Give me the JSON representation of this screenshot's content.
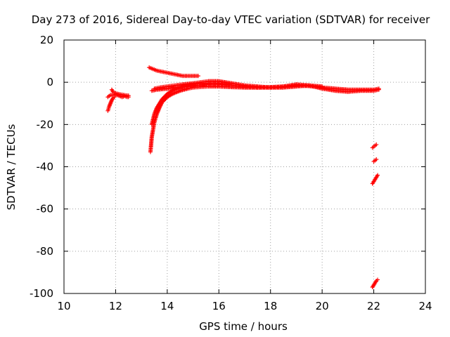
{
  "chart_data": {
    "type": "scatter",
    "title": "Day 273 of 2016, Sidereal Day-to-day VTEC variation (SDTVAR) for receiver",
    "xlabel": "GPS time / hours",
    "ylabel": "SDTVAR / TECUs",
    "xlim": [
      10,
      24
    ],
    "ylim": [
      -100,
      20
    ],
    "xticks": [
      "10",
      "12",
      "14",
      "16",
      "18",
      "20",
      "22",
      "24"
    ],
    "yticks": [
      "20",
      "0",
      "-20",
      "-40",
      "-60",
      "-80",
      "-100"
    ],
    "grid": true,
    "marker": "+",
    "color": "#ff0000",
    "series": [
      {
        "x": [
          11.7,
          11.75,
          11.8,
          11.85,
          11.9,
          11.95,
          12.0,
          12.05,
          12.1,
          12.15,
          12.2,
          12.25,
          12.3,
          12.35,
          12.4,
          12.45,
          12.5
        ],
        "y": [
          -7,
          -6.5,
          -6,
          -6,
          -6.2,
          -6,
          -5.8,
          -6,
          -6.3,
          -6.5,
          -6.7,
          -7,
          -6.8,
          -6.5,
          -6.8,
          -7,
          -7
        ]
      },
      {
        "x": [
          11.7,
          11.75,
          11.8,
          11.85,
          11.9,
          11.95
        ],
        "y": [
          -13.5,
          -11.5,
          -10,
          -8.5,
          -7.5,
          -7
        ]
      },
      {
        "x": [
          11.85,
          11.9,
          11.95,
          12.0,
          12.1,
          12.2,
          12.3,
          12.4,
          12.5
        ],
        "y": [
          -3.5,
          -4.5,
          -5,
          -5.2,
          -5.5,
          -5.8,
          -6,
          -6.2,
          -6.3
        ]
      },
      {
        "x": [
          13.3,
          13.4,
          13.5,
          13.6,
          13.8,
          14.0,
          14.2,
          14.4,
          14.6,
          14.8,
          15.0,
          15.2
        ],
        "y": [
          7,
          6.5,
          6,
          5.5,
          5,
          4.5,
          4,
          3.5,
          3,
          3,
          3,
          3
        ]
      },
      {
        "x": [
          13.35,
          13.4,
          13.5,
          13.6,
          13.7,
          13.8,
          14.0,
          14.2,
          14.5,
          14.8,
          15.0,
          15.3,
          15.6,
          16.0,
          16.5,
          17.0,
          17.5,
          18.0,
          18.5,
          19.0,
          19.5,
          20.0,
          20.5,
          21.0,
          21.5,
          22.0,
          22.2
        ],
        "y": [
          -33,
          -26,
          -19,
          -15,
          -12,
          -9.5,
          -7,
          -5.5,
          -4,
          -3,
          -2.5,
          -2.2,
          -2,
          -2,
          -2.3,
          -2.5,
          -2.5,
          -2.3,
          -2,
          -1.5,
          -1.8,
          -2.5,
          -3,
          -3.5,
          -3.5,
          -3.5,
          -3
        ]
      },
      {
        "x": [
          13.4,
          13.5,
          13.6,
          13.8,
          14.0,
          14.2,
          14.5,
          14.8,
          15.0,
          15.3,
          15.6,
          16.0,
          16.5,
          17.0,
          17.5,
          18.0,
          18.5,
          19.0,
          19.5,
          20.0,
          20.5,
          21.0,
          21.5,
          22.0,
          22.2
        ],
        "y": [
          -20,
          -15,
          -12,
          -8,
          -5.5,
          -4,
          -2.5,
          -1.5,
          -1,
          -0.5,
          -0.5,
          -1,
          -1.5,
          -2,
          -2.5,
          -2.5,
          -2,
          -1,
          -1.5,
          -3,
          -4,
          -4.5,
          -4,
          -4,
          -3.5
        ]
      },
      {
        "x": [
          13.5,
          13.7,
          14.0,
          14.3,
          14.6,
          15.0,
          15.3,
          15.6,
          16.0,
          16.5,
          17.0,
          17.5,
          18.0,
          18.5,
          19.0,
          19.5,
          20.0
        ],
        "y": [
          -3,
          -2.5,
          -2,
          -1.5,
          -1,
          -0.5,
          0,
          0.5,
          0.5,
          -0.5,
          -1.5,
          -2,
          -2.5,
          -2.5,
          -2,
          -1.5,
          -2
        ]
      },
      {
        "x": [
          13.4,
          13.6,
          14.0,
          14.4,
          14.8,
          15.2,
          15.6,
          16.0,
          16.4
        ],
        "y": [
          -4,
          -3.5,
          -3,
          -2.5,
          -2,
          -1.5,
          -1,
          -0.5,
          -1
        ]
      },
      {
        "x": [
          21.95,
          22.0,
          22.05,
          22.1
        ],
        "y": [
          -31,
          -30.5,
          -30,
          -29.5
        ]
      },
      {
        "x": [
          22.0,
          22.05,
          22.1
        ],
        "y": [
          -37.5,
          -37,
          -36.5
        ]
      },
      {
        "x": [
          21.95,
          22.0,
          22.05,
          22.1,
          22.15
        ],
        "y": [
          -48,
          -47,
          -46,
          -45,
          -44
        ]
      },
      {
        "x": [
          21.95,
          22.0,
          22.05,
          22.1,
          22.15
        ],
        "y": [
          -97,
          -96,
          -95,
          -94,
          -93.5
        ]
      }
    ]
  }
}
